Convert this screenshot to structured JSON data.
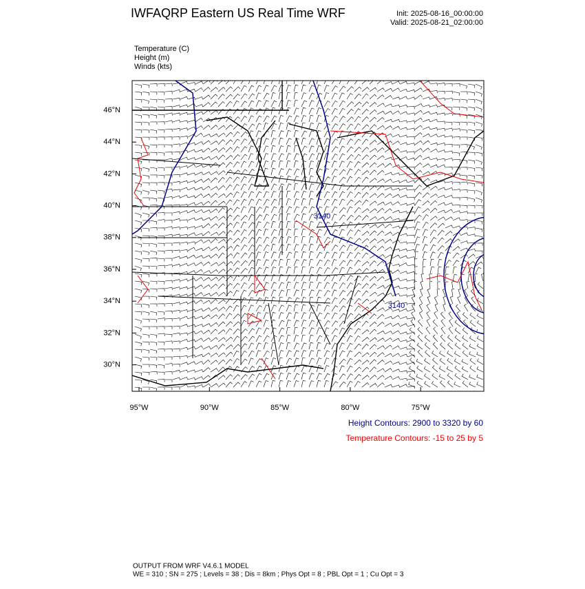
{
  "header": {
    "title": "IWFAQRP Eastern US Real Time WRF",
    "init": "Init: 2025-08-16_00:00:00",
    "valid": "Valid: 2025-08-21_02:00:00"
  },
  "fields": [
    "Temperature   (C)",
    "Height   (m)",
    "Winds   (kts)"
  ],
  "lat_labels": [
    "46°N",
    "44°N",
    "42°N",
    "40°N",
    "38°N",
    "36°N",
    "34°N",
    "32°N",
    "30°N"
  ],
  "lon_labels": [
    "95°W",
    "90°W",
    "85°W",
    "80°W",
    "75°W"
  ],
  "contour_labels": [
    "3140",
    "3140"
  ],
  "contour_info": {
    "height": "Height Contours: 2900 to 3320 by 60",
    "temperature": "Temperature Contours: -15 to 25 by 5"
  },
  "footer": [
    "OUTPUT FROM WRF V4.6.1 MODEL",
    "WE = 310 ; SN = 275 ; Levels = 38 ; Dis = 8km ; Phys Opt = 8 ; PBL Opt = 1 ; Cu Opt = 3"
  ]
}
